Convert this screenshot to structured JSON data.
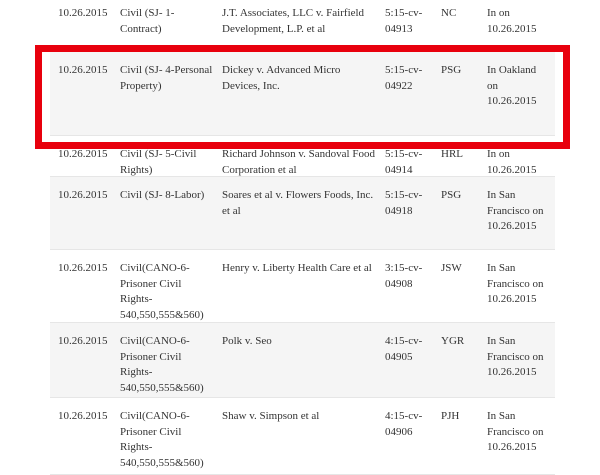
{
  "table": {
    "rows": [
      [
        "10.26.2015",
        "Civil (SJ- 1-Contract)",
        "J.T. Associates, LLC v. Fairfield Development, L.P. et al",
        "5:15-cv-04913",
        "NC",
        "In on 10.26.2015"
      ],
      [
        "10.26.2015",
        "Civil (SJ- 4-Personal Property)",
        "Dickey v. Advanced Micro Devices, Inc.",
        "5:15-cv-04922",
        "PSG",
        "In Oakland on 10.26.2015"
      ],
      [
        "10.26.2015",
        "Civil (SJ- 5-Civil Rights)",
        "Richard Johnson v. Sandoval Food Corporation et al",
        "5:15-cv-04914",
        "HRL",
        "In on 10.26.2015"
      ],
      [
        "10.26.2015",
        "Civil (SJ- 8-Labor)",
        "Soares et al v. Flowers Foods, Inc. et al",
        "5:15-cv-04918",
        "PSG",
        "In San Francisco on 10.26.2015"
      ],
      [
        "10.26.2015",
        "Civil(CANO-6-Prisoner Civil Rights-540,550,555&560)",
        "Henry v. Liberty Health Care et al",
        "3:15-cv-04908",
        "JSW",
        "In San Francisco on 10.26.2015"
      ],
      [
        "10.26.2015",
        "Civil(CANO-6-Prisoner Civil Rights-540,550,555&560)",
        "Polk v. Seo",
        "4:15-cv-04905",
        "YGR",
        "In San Francisco on 10.26.2015"
      ],
      [
        "10.26.2015",
        "Civil(CANO-6-Prisoner Civil Rights-540,550,555&560)",
        "Shaw v. Simpson et al",
        "4:15-cv-04906",
        "PJH",
        "In San Francisco on 10.26.2015"
      ]
    ]
  }
}
